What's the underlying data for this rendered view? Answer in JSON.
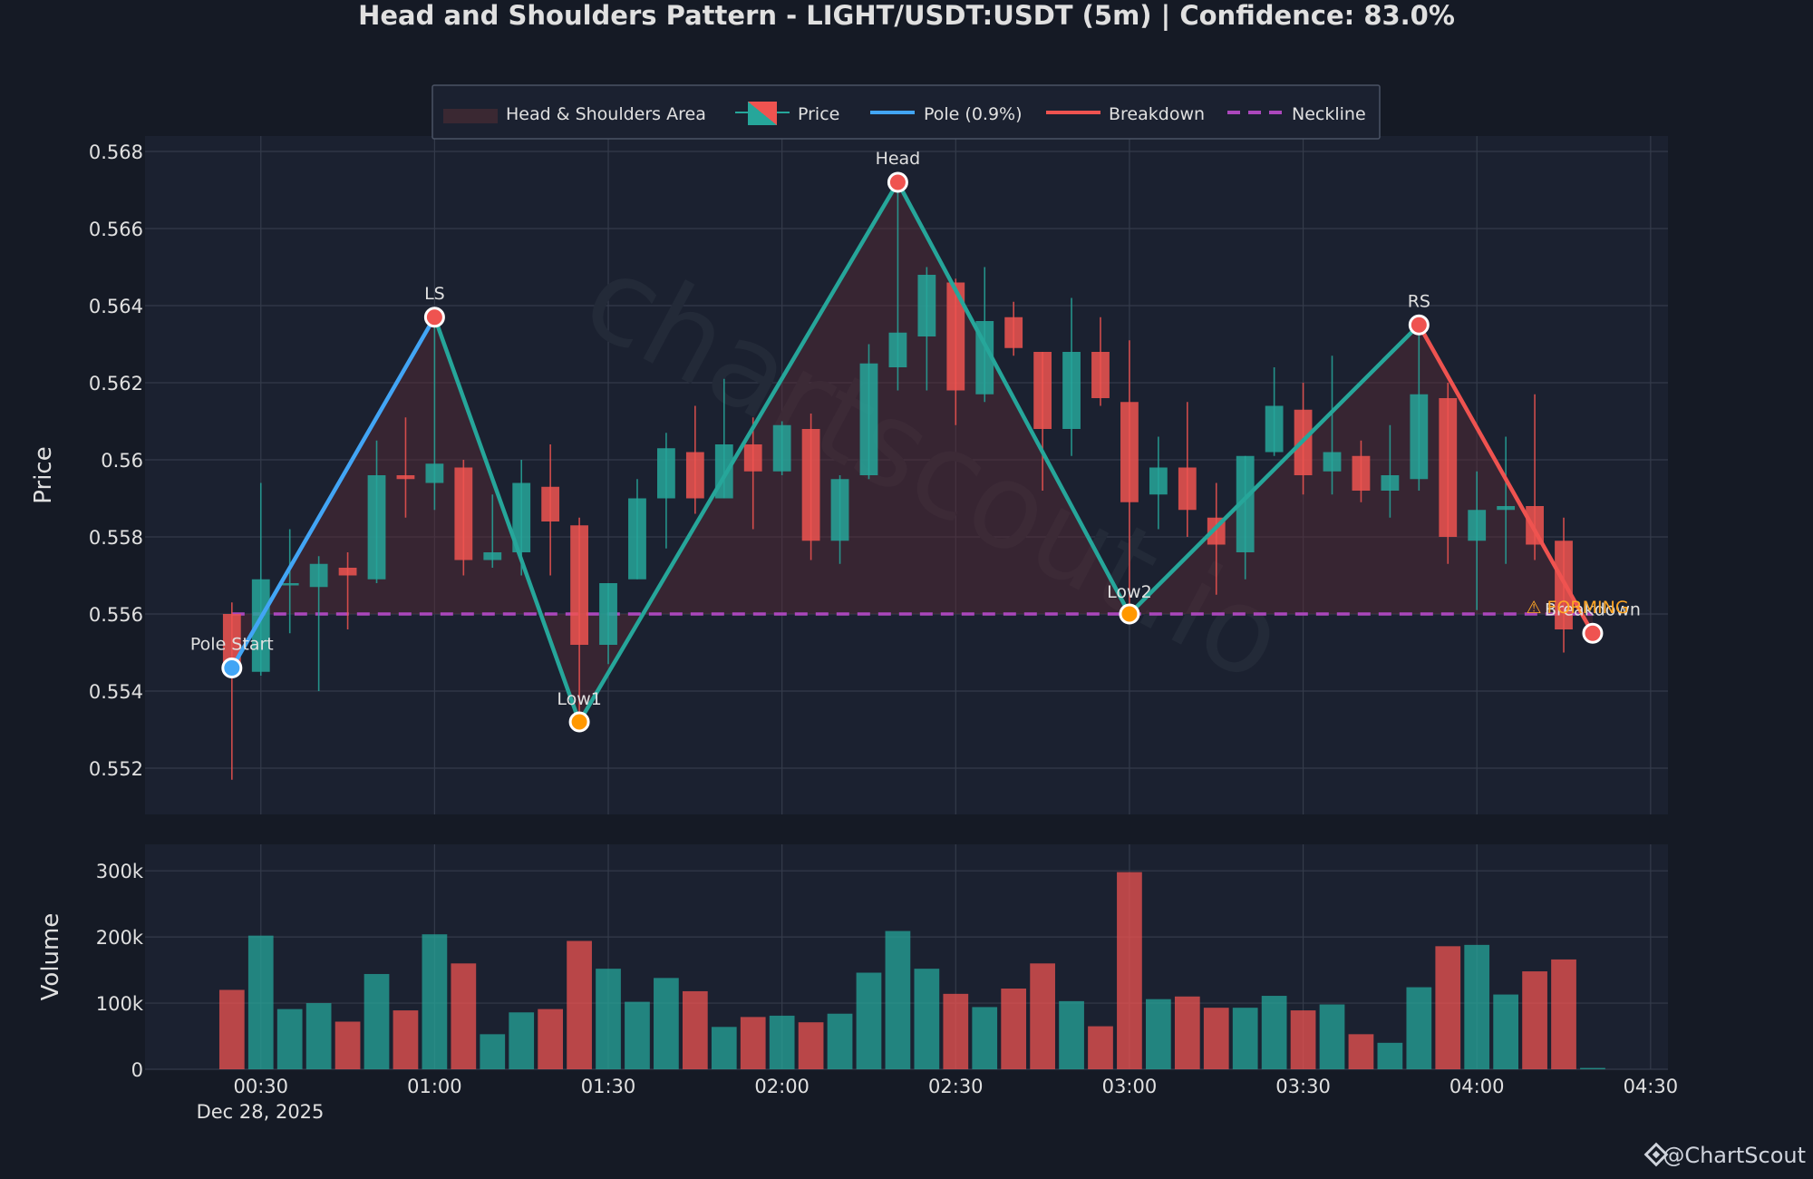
{
  "chart_data": {
    "type": "candlestick",
    "title": "Head and Shoulders Pattern - LIGHT/USDT:USDT (5m) | Confidence: 83.0%",
    "ylabel": "Price",
    "volume_label": "Volume",
    "ylim": [
      0.5508,
      0.5684
    ],
    "volume_ylim": [
      0,
      340000
    ],
    "y_ticks": [
      {
        "v": 0.552,
        "label": "0.552"
      },
      {
        "v": 0.554,
        "label": "0.554"
      },
      {
        "v": 0.556,
        "label": "0.556"
      },
      {
        "v": 0.558,
        "label": "0.558"
      },
      {
        "v": 0.56,
        "label": "0.56"
      },
      {
        "v": 0.562,
        "label": "0.562"
      },
      {
        "v": 0.564,
        "label": "0.564"
      },
      {
        "v": 0.566,
        "label": "0.566"
      },
      {
        "v": 0.568,
        "label": "0.568"
      }
    ],
    "volume_ticks": [
      {
        "v": 0,
        "label": "0"
      },
      {
        "v": 100000,
        "label": "100k"
      },
      {
        "v": 200000,
        "label": "200k"
      },
      {
        "v": 300000,
        "label": "300k"
      }
    ],
    "x_ticks": [
      {
        "t": "00:30",
        "label": "00:30"
      },
      {
        "t": "01:00",
        "label": "01:00"
      },
      {
        "t": "01:30",
        "label": "01:30"
      },
      {
        "t": "02:00",
        "label": "02:00"
      },
      {
        "t": "02:30",
        "label": "02:30"
      },
      {
        "t": "03:00",
        "label": "03:00"
      },
      {
        "t": "03:30",
        "label": "03:30"
      },
      {
        "t": "04:00",
        "label": "04:00"
      },
      {
        "t": "04:30",
        "label": "04:30"
      }
    ],
    "x_sublabel": "Dec 28, 2025",
    "xlim": [
      "00:10",
      "04:33"
    ],
    "grid": true,
    "legend_position": "top-center",
    "legend": [
      {
        "key": "area",
        "label": "Head & Shoulders Area"
      },
      {
        "key": "price",
        "label": "Price"
      },
      {
        "key": "pole",
        "label": "Pole (0.9%)"
      },
      {
        "key": "breakdown",
        "label": "Breakdown"
      },
      {
        "key": "neckline",
        "label": "Neckline"
      }
    ],
    "candles": [
      {
        "t": "00:25",
        "o": 0.556,
        "h": 0.5563,
        "l": 0.5517,
        "c": 0.5547
      },
      {
        "t": "00:30",
        "o": 0.5545,
        "h": 0.5594,
        "l": 0.5544,
        "c": 0.5569
      },
      {
        "t": "00:35",
        "o": 0.5568,
        "h": 0.5582,
        "l": 0.5555,
        "c": 0.5568
      },
      {
        "t": "00:40",
        "o": 0.5567,
        "h": 0.5575,
        "l": 0.554,
        "c": 0.5573
      },
      {
        "t": "00:45",
        "o": 0.5572,
        "h": 0.5576,
        "l": 0.5556,
        "c": 0.557
      },
      {
        "t": "00:50",
        "o": 0.5569,
        "h": 0.5605,
        "l": 0.5568,
        "c": 0.5596
      },
      {
        "t": "00:55",
        "o": 0.5596,
        "h": 0.5611,
        "l": 0.5585,
        "c": 0.5595
      },
      {
        "t": "01:00",
        "o": 0.5594,
        "h": 0.5637,
        "l": 0.5587,
        "c": 0.5599
      },
      {
        "t": "01:05",
        "o": 0.5598,
        "h": 0.56,
        "l": 0.557,
        "c": 0.5574
      },
      {
        "t": "01:10",
        "o": 0.5574,
        "h": 0.5591,
        "l": 0.5572,
        "c": 0.5576
      },
      {
        "t": "01:15",
        "o": 0.5576,
        "h": 0.56,
        "l": 0.557,
        "c": 0.5594
      },
      {
        "t": "01:20",
        "o": 0.5593,
        "h": 0.5604,
        "l": 0.557,
        "c": 0.5584
      },
      {
        "t": "01:25",
        "o": 0.5583,
        "h": 0.5585,
        "l": 0.5532,
        "c": 0.5552
      },
      {
        "t": "01:30",
        "o": 0.5552,
        "h": 0.5568,
        "l": 0.5547,
        "c": 0.5568
      },
      {
        "t": "01:35",
        "o": 0.5569,
        "h": 0.5595,
        "l": 0.5569,
        "c": 0.559
      },
      {
        "t": "01:40",
        "o": 0.559,
        "h": 0.5607,
        "l": 0.5577,
        "c": 0.5603
      },
      {
        "t": "01:45",
        "o": 0.5602,
        "h": 0.5614,
        "l": 0.5586,
        "c": 0.559
      },
      {
        "t": "01:50",
        "o": 0.559,
        "h": 0.5621,
        "l": 0.559,
        "c": 0.5604
      },
      {
        "t": "01:55",
        "o": 0.5604,
        "h": 0.5611,
        "l": 0.5582,
        "c": 0.5597
      },
      {
        "t": "02:00",
        "o": 0.5597,
        "h": 0.561,
        "l": 0.5596,
        "c": 0.5609
      },
      {
        "t": "02:05",
        "o": 0.5608,
        "h": 0.5612,
        "l": 0.5574,
        "c": 0.5579
      },
      {
        "t": "02:10",
        "o": 0.5579,
        "h": 0.5596,
        "l": 0.5573,
        "c": 0.5595
      },
      {
        "t": "02:15",
        "o": 0.5596,
        "h": 0.563,
        "l": 0.5595,
        "c": 0.5625
      },
      {
        "t": "02:20",
        "o": 0.5624,
        "h": 0.5671,
        "l": 0.5618,
        "c": 0.5633
      },
      {
        "t": "02:25",
        "o": 0.5632,
        "h": 0.565,
        "l": 0.5618,
        "c": 0.5648
      },
      {
        "t": "02:30",
        "o": 0.5646,
        "h": 0.5647,
        "l": 0.5609,
        "c": 0.5618
      },
      {
        "t": "02:35",
        "o": 0.5617,
        "h": 0.565,
        "l": 0.5615,
        "c": 0.5636
      },
      {
        "t": "02:40",
        "o": 0.5637,
        "h": 0.5641,
        "l": 0.5627,
        "c": 0.5629
      },
      {
        "t": "02:45",
        "o": 0.5628,
        "h": 0.5628,
        "l": 0.5592,
        "c": 0.5608
      },
      {
        "t": "02:50",
        "o": 0.5608,
        "h": 0.5642,
        "l": 0.5601,
        "c": 0.5628
      },
      {
        "t": "02:55",
        "o": 0.5628,
        "h": 0.5637,
        "l": 0.5614,
        "c": 0.5616
      },
      {
        "t": "03:00",
        "o": 0.5615,
        "h": 0.5631,
        "l": 0.556,
        "c": 0.5589
      },
      {
        "t": "03:05",
        "o": 0.5591,
        "h": 0.5606,
        "l": 0.5582,
        "c": 0.5598
      },
      {
        "t": "03:10",
        "o": 0.5598,
        "h": 0.5615,
        "l": 0.558,
        "c": 0.5587
      },
      {
        "t": "03:15",
        "o": 0.5585,
        "h": 0.5594,
        "l": 0.5565,
        "c": 0.5578
      },
      {
        "t": "03:20",
        "o": 0.5576,
        "h": 0.5601,
        "l": 0.5569,
        "c": 0.5601
      },
      {
        "t": "03:25",
        "o": 0.5602,
        "h": 0.5624,
        "l": 0.5601,
        "c": 0.5614
      },
      {
        "t": "03:30",
        "o": 0.5613,
        "h": 0.562,
        "l": 0.5591,
        "c": 0.5596
      },
      {
        "t": "03:35",
        "o": 0.5597,
        "h": 0.5627,
        "l": 0.5591,
        "c": 0.5602
      },
      {
        "t": "03:40",
        "o": 0.5601,
        "h": 0.5605,
        "l": 0.5589,
        "c": 0.5592
      },
      {
        "t": "03:45",
        "o": 0.5592,
        "h": 0.5609,
        "l": 0.5585,
        "c": 0.5596
      },
      {
        "t": "03:50",
        "o": 0.5595,
        "h": 0.5635,
        "l": 0.5592,
        "c": 0.5617
      },
      {
        "t": "03:55",
        "o": 0.5616,
        "h": 0.562,
        "l": 0.5573,
        "c": 0.558
      },
      {
        "t": "04:00",
        "o": 0.5579,
        "h": 0.5597,
        "l": 0.5561,
        "c": 0.5587
      },
      {
        "t": "04:05",
        "o": 0.5587,
        "h": 0.5606,
        "l": 0.5573,
        "c": 0.5588
      },
      {
        "t": "04:10",
        "o": 0.5588,
        "h": 0.5617,
        "l": 0.5574,
        "c": 0.5578
      },
      {
        "t": "04:15",
        "o": 0.5579,
        "h": 0.5585,
        "l": 0.555,
        "c": 0.5556
      }
    ],
    "volumes": [
      {
        "t": "00:25",
        "v": 120000,
        "dir": "down"
      },
      {
        "t": "00:30",
        "v": 202000,
        "dir": "up"
      },
      {
        "t": "00:35",
        "v": 91000,
        "dir": "up"
      },
      {
        "t": "00:40",
        "v": 100000,
        "dir": "up"
      },
      {
        "t": "00:45",
        "v": 72000,
        "dir": "down"
      },
      {
        "t": "00:50",
        "v": 144000,
        "dir": "up"
      },
      {
        "t": "00:55",
        "v": 89000,
        "dir": "down"
      },
      {
        "t": "01:00",
        "v": 204000,
        "dir": "up"
      },
      {
        "t": "01:05",
        "v": 160000,
        "dir": "down"
      },
      {
        "t": "01:10",
        "v": 53000,
        "dir": "up"
      },
      {
        "t": "01:15",
        "v": 86000,
        "dir": "up"
      },
      {
        "t": "01:20",
        "v": 91000,
        "dir": "down"
      },
      {
        "t": "01:25",
        "v": 194000,
        "dir": "down"
      },
      {
        "t": "01:30",
        "v": 152000,
        "dir": "up"
      },
      {
        "t": "01:35",
        "v": 102000,
        "dir": "up"
      },
      {
        "t": "01:40",
        "v": 138000,
        "dir": "up"
      },
      {
        "t": "01:45",
        "v": 118000,
        "dir": "down"
      },
      {
        "t": "01:50",
        "v": 64000,
        "dir": "up"
      },
      {
        "t": "01:55",
        "v": 79000,
        "dir": "down"
      },
      {
        "t": "02:00",
        "v": 81000,
        "dir": "up"
      },
      {
        "t": "02:05",
        "v": 71000,
        "dir": "down"
      },
      {
        "t": "02:10",
        "v": 84000,
        "dir": "up"
      },
      {
        "t": "02:15",
        "v": 146000,
        "dir": "up"
      },
      {
        "t": "02:20",
        "v": 209000,
        "dir": "up"
      },
      {
        "t": "02:25",
        "v": 152000,
        "dir": "up"
      },
      {
        "t": "02:30",
        "v": 114000,
        "dir": "down"
      },
      {
        "t": "02:35",
        "v": 94000,
        "dir": "up"
      },
      {
        "t": "02:40",
        "v": 122000,
        "dir": "down"
      },
      {
        "t": "02:45",
        "v": 160000,
        "dir": "down"
      },
      {
        "t": "02:50",
        "v": 103000,
        "dir": "up"
      },
      {
        "t": "02:55",
        "v": 65000,
        "dir": "down"
      },
      {
        "t": "03:00",
        "v": 298000,
        "dir": "down"
      },
      {
        "t": "03:05",
        "v": 106000,
        "dir": "up"
      },
      {
        "t": "03:10",
        "v": 110000,
        "dir": "down"
      },
      {
        "t": "03:15",
        "v": 93000,
        "dir": "down"
      },
      {
        "t": "03:20",
        "v": 93000,
        "dir": "up"
      },
      {
        "t": "03:25",
        "v": 111000,
        "dir": "up"
      },
      {
        "t": "03:30",
        "v": 89000,
        "dir": "down"
      },
      {
        "t": "03:35",
        "v": 98000,
        "dir": "up"
      },
      {
        "t": "03:40",
        "v": 53000,
        "dir": "down"
      },
      {
        "t": "03:45",
        "v": 40000,
        "dir": "up"
      },
      {
        "t": "03:50",
        "v": 124000,
        "dir": "up"
      },
      {
        "t": "03:55",
        "v": 186000,
        "dir": "down"
      },
      {
        "t": "04:00",
        "v": 188000,
        "dir": "up"
      },
      {
        "t": "04:05",
        "v": 113000,
        "dir": "up"
      },
      {
        "t": "04:10",
        "v": 148000,
        "dir": "down"
      },
      {
        "t": "04:15",
        "v": 166000,
        "dir": "down"
      },
      {
        "t": "04:20",
        "v": 2000,
        "dir": "up"
      }
    ],
    "neckline": 0.556,
    "pattern_points": [
      {
        "t": "00:25",
        "p": 0.5546,
        "label": "Pole Start",
        "kind": "pole"
      },
      {
        "t": "01:00",
        "p": 0.5637,
        "label": "LS",
        "kind": "peak"
      },
      {
        "t": "01:25",
        "p": 0.5532,
        "label": "Low1",
        "kind": "low"
      },
      {
        "t": "02:20",
        "p": 0.5672,
        "label": "Head",
        "kind": "peak"
      },
      {
        "t": "03:00",
        "p": 0.556,
        "label": "Low2",
        "kind": "low"
      },
      {
        "t": "03:50",
        "p": 0.5635,
        "label": "RS",
        "kind": "peak"
      },
      {
        "t": "04:20",
        "p": 0.5555,
        "label": "Breakdown",
        "kind": "breakdown"
      }
    ],
    "status_label": "⚠ FORMING",
    "watermark": "chartscout.io",
    "brand": "@ChartScout",
    "colors": {
      "background": "#151a25",
      "panel": "#1b2130",
      "up": "#26a69a",
      "down": "#ef5350",
      "pole": "#42a5f5",
      "breakdown": "#ef5350",
      "neckline": "#ab47bc",
      "pattern_line": "#26a69a",
      "area": "#5a2a35",
      "low_marker": "#ff9800",
      "status": "#ffa726",
      "text": "#e0e0e0"
    }
  }
}
